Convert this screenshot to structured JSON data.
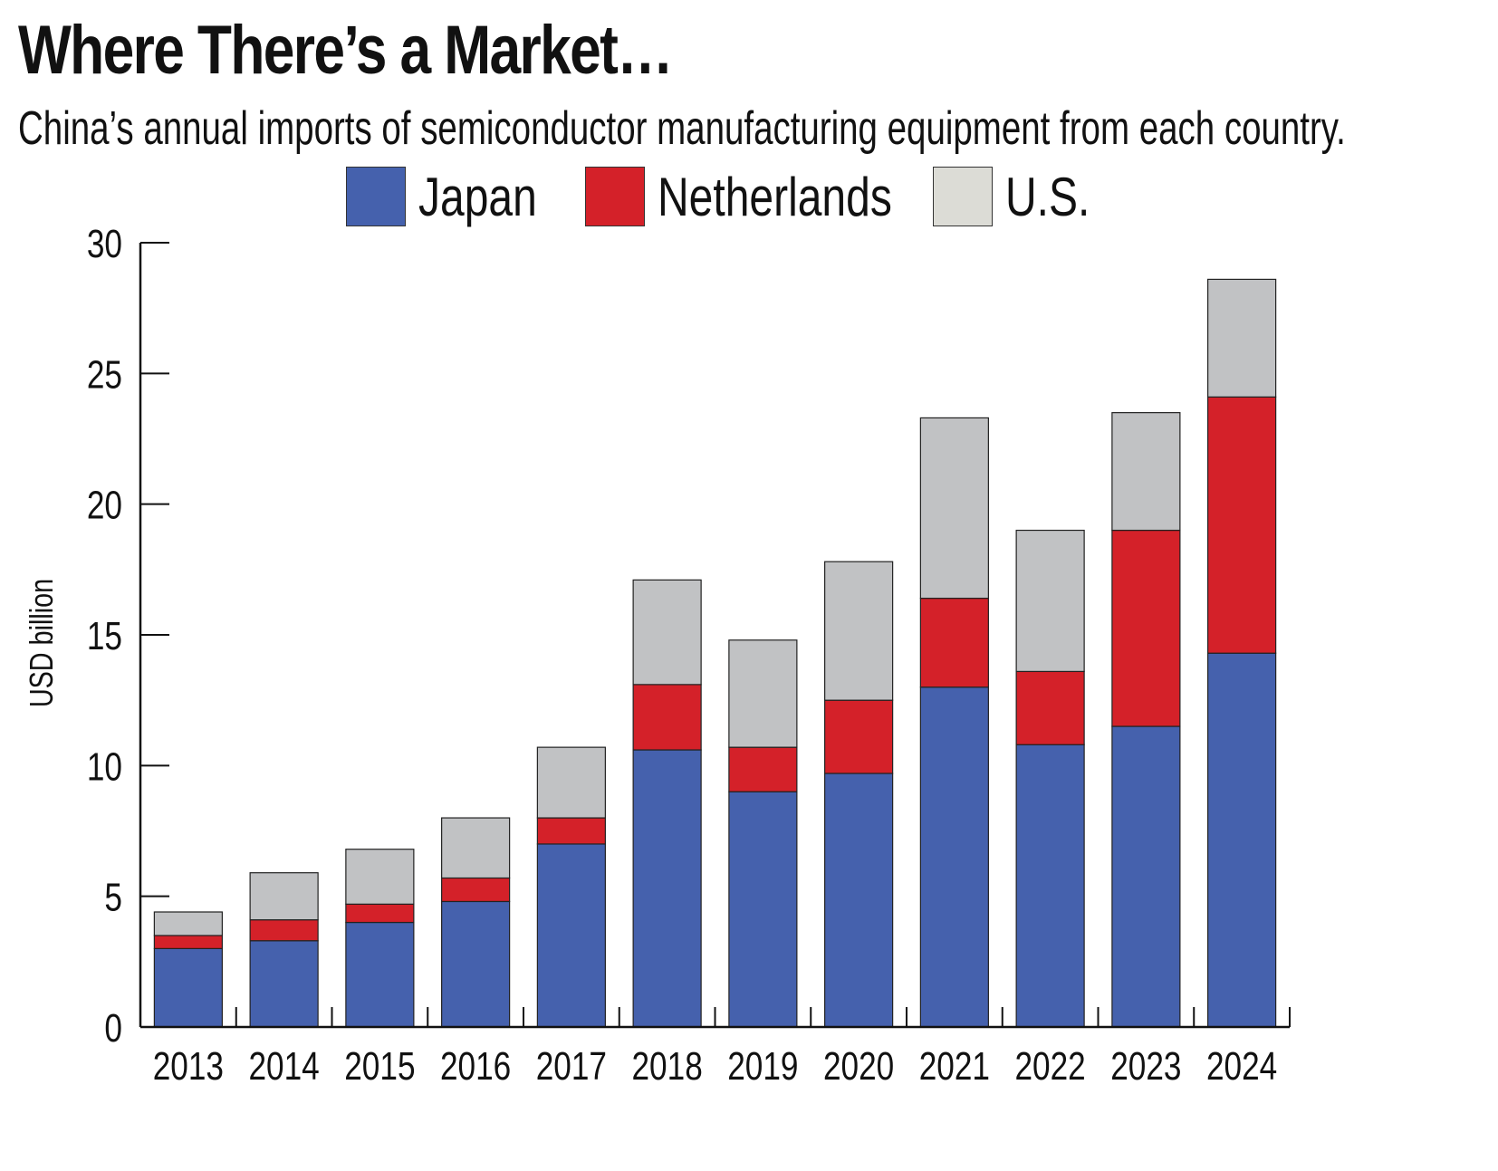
{
  "title": "Where There’s a Market…",
  "subtitle": "China’s annual imports of semiconductor manufacturing equipment from each country.",
  "colors": {
    "Japan": "#4561ad",
    "Netherlands": "#d42129",
    "U.S.": "#c1c2c4",
    "US_legend": "#dcdcd6"
  },
  "legend": [
    {
      "label": "Japan",
      "color": "#4561ad"
    },
    {
      "label": "Netherlands",
      "color": "#d42129"
    },
    {
      "label": "U.S.",
      "color": "#dcdcd6"
    }
  ],
  "chart_data": {
    "type": "bar",
    "stacked": true,
    "title": "Where There’s a Market…",
    "subtitle": "China’s annual imports of semiconductor manufacturing equipment from each country.",
    "xlabel": "",
    "ylabel": "USD billion",
    "ylim": [
      0,
      30
    ],
    "yticks": [
      0,
      5,
      10,
      15,
      20,
      25,
      30
    ],
    "grid": false,
    "legend_position": "top-center",
    "categories": [
      "2013",
      "2014",
      "2015",
      "2016",
      "2017",
      "2018",
      "2019",
      "2020",
      "2021",
      "2022",
      "2023",
      "2024"
    ],
    "series": [
      {
        "name": "Japan",
        "values": [
          3.0,
          3.3,
          4.0,
          4.8,
          7.0,
          10.6,
          9.0,
          9.7,
          13.0,
          10.8,
          11.5,
          14.3
        ]
      },
      {
        "name": "Netherlands",
        "values": [
          0.5,
          0.8,
          0.7,
          0.9,
          1.0,
          2.5,
          1.7,
          2.8,
          3.4,
          2.8,
          7.5,
          9.8
        ]
      },
      {
        "name": "U.S.",
        "values": [
          0.9,
          1.8,
          2.1,
          2.3,
          2.7,
          4.0,
          4.1,
          5.3,
          6.9,
          5.4,
          4.5,
          4.5
        ]
      }
    ]
  }
}
